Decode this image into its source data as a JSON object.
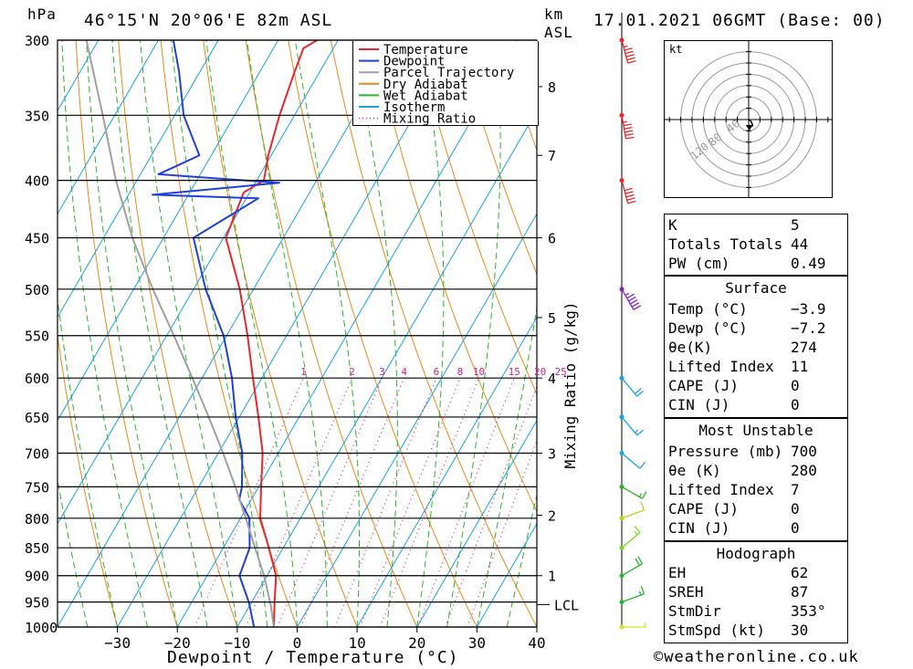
{
  "header": {
    "unit_left": "hPa",
    "location": "46°15'N  20°06'E  82m  ASL",
    "unit_km": "km",
    "unit_asl": "ASL",
    "datetime": "17.01.2021  06GMT  (Base: 00)"
  },
  "footer": {
    "xlabel": "Dewpoint / Temperature (°C)",
    "credit": "©weatheronline.co.uk"
  },
  "right_axis_label": "Mixing Ratio (g/kg)",
  "lcl_label": "LCL",
  "hodograph": {
    "unit": "kt",
    "ring_labels": [
      "40",
      "80",
      "120"
    ],
    "ring_values": [
      20,
      40,
      60,
      80,
      100,
      120
    ],
    "trace": [
      [
        0,
        0
      ],
      [
        3,
        -2
      ],
      [
        5,
        -6
      ],
      [
        6,
        -9
      ],
      [
        2,
        -10
      ],
      [
        1,
        -8
      ]
    ]
  },
  "legend": [
    {
      "label": "Temperature",
      "color": "#e8262b",
      "style": "solid"
    },
    {
      "label": "Dewpoint",
      "color": "#1f3fd8",
      "style": "solid"
    },
    {
      "label": "Parcel Trajectory",
      "color": "#a0a0a0",
      "style": "solid"
    },
    {
      "label": "Dry Adiabat",
      "color": "#e48a1c",
      "style": "solid"
    },
    {
      "label": "Wet Adiabat",
      "color": "#2ab42a",
      "style": "solid"
    },
    {
      "label": "Isotherm",
      "color": "#19a2e0",
      "style": "solid"
    },
    {
      "label": "Mixing Ratio",
      "color": "#d0208c",
      "style": "dotted"
    }
  ],
  "indices": {
    "general": [
      {
        "label": "K",
        "value": "5"
      },
      {
        "label": "Totals Totals",
        "value": "44"
      },
      {
        "label": "PW (cm)",
        "value": "0.49"
      }
    ],
    "surface_title": "Surface",
    "surface": [
      {
        "label": "Temp (°C)",
        "value": "-3.9"
      },
      {
        "label": "Dewp (°C)",
        "value": "-7.2"
      },
      {
        "label": "θe(K)",
        "value": "274"
      },
      {
        "label": "Lifted Index",
        "value": "11"
      },
      {
        "label": "CAPE (J)",
        "value": "0"
      },
      {
        "label": "CIN (J)",
        "value": "0"
      }
    ],
    "mu_title": "Most Unstable",
    "mu": [
      {
        "label": "Pressure (mb)",
        "value": "700"
      },
      {
        "label": "θe (K)",
        "value": "280"
      },
      {
        "label": "Lifted Index",
        "value": "7"
      },
      {
        "label": "CAPE (J)",
        "value": "0"
      },
      {
        "label": "CIN (J)",
        "value": "0"
      }
    ],
    "hodo_title": "Hodograph",
    "hodo": [
      {
        "label": "EH",
        "value": "62"
      },
      {
        "label": "SREH",
        "value": "87"
      },
      {
        "label": "StmDir",
        "value": "353°"
      },
      {
        "label": "StmSpd (kt)",
        "value": "30"
      }
    ]
  },
  "chart_data": {
    "type": "line",
    "title": "46°15'N  20°06'E  82m  ASL",
    "xlabel": "Dewpoint / Temperature (°C)",
    "ylabel": "hPa",
    "y2label": "Mixing Ratio (g/kg)",
    "xlim": [
      -40,
      40
    ],
    "ylim": [
      1000,
      300
    ],
    "y_log_scale": true,
    "skew": true,
    "x_ticks": [
      -30,
      -20,
      -10,
      0,
      10,
      20,
      30,
      40
    ],
    "pressure_ticks": [
      300,
      350,
      400,
      450,
      500,
      550,
      600,
      650,
      700,
      750,
      800,
      850,
      900,
      950,
      1000
    ],
    "km_ticks": [
      {
        "km": 1,
        "p": 900
      },
      {
        "km": 2,
        "p": 795
      },
      {
        "km": 3,
        "p": 700
      },
      {
        "km": 4,
        "p": 600
      },
      {
        "km": 5,
        "p": 530
      },
      {
        "km": 6,
        "p": 450
      },
      {
        "km": 7,
        "p": 380
      },
      {
        "km": 8,
        "p": 330
      }
    ],
    "lcl_pressure": 955,
    "mixing_ratio_labels": [
      "1",
      "2",
      "3",
      "4",
      "6",
      "8",
      "10",
      "15",
      "20",
      "25"
    ],
    "mixing_ratio_values": [
      1,
      2,
      3,
      4,
      6,
      8,
      10,
      15,
      20,
      25
    ],
    "series": [
      {
        "name": "Temperature",
        "color": "#e8262b",
        "points": [
          [
            1000,
            -3.9
          ],
          [
            950,
            -6.2
          ],
          [
            900,
            -8.5
          ],
          [
            850,
            -12.4
          ],
          [
            800,
            -16.7
          ],
          [
            750,
            -19.6
          ],
          [
            700,
            -22.6
          ],
          [
            650,
            -26.8
          ],
          [
            600,
            -31.5
          ],
          [
            550,
            -36.5
          ],
          [
            500,
            -42.3
          ],
          [
            450,
            -49.6
          ],
          [
            410,
            -51.0
          ],
          [
            400,
            -48.8
          ],
          [
            380,
            -50.5
          ],
          [
            350,
            -52.5
          ],
          [
            320,
            -54.2
          ],
          [
            305,
            -55.0
          ],
          [
            300,
            -53.5
          ]
        ]
      },
      {
        "name": "Dewpoint",
        "color": "#1f3fd8",
        "points": [
          [
            1000,
            -7.2
          ],
          [
            950,
            -10.5
          ],
          [
            900,
            -14.6
          ],
          [
            850,
            -15.6
          ],
          [
            800,
            -18.5
          ],
          [
            770,
            -22.0
          ],
          [
            750,
            -22.8
          ],
          [
            700,
            -26.0
          ],
          [
            650,
            -30.6
          ],
          [
            600,
            -35.0
          ],
          [
            550,
            -40.5
          ],
          [
            500,
            -48.0
          ],
          [
            450,
            -55.0
          ],
          [
            415,
            -48.0
          ],
          [
            412,
            -66.0
          ],
          [
            402,
            -46.0
          ],
          [
            395,
            -67.0
          ],
          [
            380,
            -62.0
          ],
          [
            350,
            -68.5
          ],
          [
            320,
            -73.5
          ],
          [
            300,
            -77.5
          ]
        ]
      },
      {
        "name": "Parcel Trajectory",
        "color": "#a0a0a0",
        "points": [
          [
            1000,
            -3.9
          ],
          [
            955,
            -6.6
          ],
          [
            900,
            -10.5
          ],
          [
            850,
            -14.7
          ],
          [
            800,
            -19.1
          ],
          [
            750,
            -23.9
          ],
          [
            700,
            -29.2
          ],
          [
            650,
            -35.1
          ],
          [
            600,
            -41.6
          ],
          [
            550,
            -48.8
          ],
          [
            500,
            -56.8
          ],
          [
            450,
            -65.2
          ],
          [
            400,
            -73.5
          ],
          [
            350,
            -82.0
          ],
          [
            300,
            -92.0
          ]
        ]
      }
    ],
    "wind_profile": [
      {
        "p": 1000,
        "dir": 270,
        "spd": 5,
        "color": "#cfe520"
      },
      {
        "p": 950,
        "dir": 250,
        "spd": 15,
        "color": "#2ab42a"
      },
      {
        "p": 900,
        "dir": 240,
        "spd": 20,
        "color": "#2ab42a"
      },
      {
        "p": 850,
        "dir": 230,
        "spd": 15,
        "color": "#7ed321"
      },
      {
        "p": 800,
        "dir": 250,
        "spd": 10,
        "color": "#b4d21e"
      },
      {
        "p": 750,
        "dir": 300,
        "spd": 15,
        "color": "#2ab42a"
      },
      {
        "p": 700,
        "dir": 310,
        "spd": 10,
        "color": "#19a2e0"
      },
      {
        "p": 650,
        "dir": 320,
        "spd": 15,
        "color": "#19a2e0"
      },
      {
        "p": 600,
        "dir": 320,
        "spd": 20,
        "color": "#19a2e0"
      },
      {
        "p": 500,
        "dir": 330,
        "spd": 55,
        "color": "#8b1fc4"
      },
      {
        "p": 400,
        "dir": 345,
        "spd": 50,
        "color": "#e8262b"
      },
      {
        "p": 350,
        "dir": 350,
        "spd": 55,
        "color": "#e8262b"
      },
      {
        "p": 300,
        "dir": 345,
        "spd": 55,
        "color": "#e8262b"
      }
    ]
  }
}
